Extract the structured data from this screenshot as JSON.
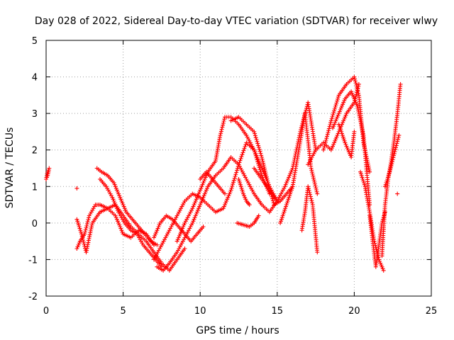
{
  "chart_data": {
    "type": "scatter",
    "title": "Day 028 of 2022, Sidereal Day-to-day VTEC variation (SDTVAR) for receiver wlwy",
    "xlabel": "GPS time / hours",
    "ylabel": "SDTVAR / TECUs",
    "xlim": [
      0,
      25
    ],
    "ylim": [
      -2,
      5
    ],
    "xticks": [
      0,
      5,
      10,
      15,
      20,
      25
    ],
    "yticks": [
      -2,
      -1,
      0,
      1,
      2,
      3,
      4,
      5
    ],
    "xtick_labels": [
      "0",
      "5",
      "10",
      "15",
      "20",
      "25"
    ],
    "ytick_labels": [
      "-2",
      "-1",
      "0",
      "1",
      "2",
      "3",
      "4",
      "5"
    ],
    "grid": true,
    "marker": "+",
    "color": "#ff0000",
    "series": [
      {
        "name": "s1",
        "x": [
          0.0,
          0.1,
          0.2,
          0.1,
          0.0
        ],
        "y": [
          1.2,
          1.4,
          1.5,
          1.3,
          1.2
        ]
      },
      {
        "name": "s2",
        "x": [
          2.0
        ],
        "y": [
          0.95
        ]
      },
      {
        "name": "s3",
        "x": [
          2.0,
          2.2,
          2.5,
          2.8,
          3.2,
          3.5,
          4.0,
          4.5,
          5.0,
          5.5,
          6.0,
          6.5,
          7.0
        ],
        "y": [
          -0.7,
          -0.5,
          -0.3,
          0.2,
          0.5,
          0.5,
          0.4,
          0.2,
          -0.3,
          -0.4,
          -0.2,
          -0.3,
          -0.6
        ]
      },
      {
        "name": "s4",
        "x": [
          2.0,
          2.3,
          2.6,
          3.0,
          3.5,
          4.0,
          4.5,
          5.0,
          5.5,
          6.0,
          6.5,
          7.0,
          7.5,
          8.0,
          8.5,
          9.0
        ],
        "y": [
          0.1,
          -0.3,
          -0.8,
          0.0,
          0.3,
          0.4,
          0.5,
          0.2,
          -0.1,
          -0.3,
          -0.5,
          -0.8,
          -1.1,
          -1.3,
          -1.0,
          -0.7
        ]
      },
      {
        "name": "s5",
        "x": [
          3.3,
          3.6,
          4.0,
          4.4,
          4.8,
          5.2,
          5.6,
          6.0,
          6.4,
          6.8,
          7.2
        ],
        "y": [
          1.5,
          1.4,
          1.3,
          1.1,
          0.7,
          0.3,
          0.1,
          -0.1,
          -0.3,
          -0.5,
          -0.6
        ]
      },
      {
        "name": "s6",
        "x": [
          3.5,
          3.9,
          4.3,
          4.7,
          5.1,
          5.5,
          5.9,
          6.3,
          6.7,
          7.1,
          7.5
        ],
        "y": [
          1.2,
          1.0,
          0.7,
          0.3,
          0.0,
          -0.2,
          -0.3,
          -0.6,
          -0.8,
          -1.0,
          -1.2
        ]
      },
      {
        "name": "s7",
        "x": [
          7.2,
          7.6,
          8.0,
          8.5,
          9.0,
          9.5,
          10.0,
          10.5,
          11.0,
          11.5,
          12.0,
          12.5,
          13.0,
          13.5,
          14.0,
          14.5,
          15.0
        ],
        "y": [
          -1.2,
          -1.3,
          -1.1,
          -0.8,
          -0.4,
          0.0,
          0.5,
          1.0,
          1.3,
          1.5,
          1.8,
          1.6,
          1.2,
          0.8,
          0.5,
          0.3,
          0.6
        ]
      },
      {
        "name": "s8",
        "x": [
          8.5,
          9.0,
          9.5,
          10.0,
          10.5,
          11.0,
          11.3,
          11.6,
          12.0,
          12.5,
          13.0,
          13.5,
          14.0,
          14.5,
          15.0
        ],
        "y": [
          -0.5,
          0.0,
          0.4,
          0.9,
          1.4,
          1.7,
          2.4,
          2.9,
          2.9,
          2.7,
          2.4,
          2.0,
          1.5,
          1.0,
          0.6
        ]
      },
      {
        "name": "s9",
        "x": [
          7.0,
          7.5,
          8.0,
          8.5,
          9.0,
          9.5,
          10.0,
          10.5,
          11.0,
          11.5,
          12.0,
          12.5,
          13.0,
          13.5,
          14.0,
          14.5
        ],
        "y": [
          -1.0,
          -0.6,
          -0.2,
          0.2,
          0.6,
          0.8,
          0.7,
          0.5,
          0.3,
          0.4,
          0.9,
          1.6,
          2.2,
          2.0,
          1.3,
          0.8
        ]
      },
      {
        "name": "s10",
        "x": [
          7.0,
          7.4,
          7.8,
          8.2,
          8.6,
          9.0,
          9.4,
          9.8,
          10.2
        ],
        "y": [
          -0.4,
          0.0,
          0.2,
          0.1,
          -0.1,
          -0.3,
          -0.5,
          -0.3,
          -0.1
        ]
      },
      {
        "name": "s11",
        "x": [
          10.0,
          10.4,
          10.8,
          11.2,
          11.6
        ],
        "y": [
          1.2,
          1.4,
          1.2,
          1.0,
          0.8
        ]
      },
      {
        "name": "s12",
        "x": [
          12.0,
          12.5,
          13.0,
          13.5,
          14.0,
          14.4,
          14.8,
          15.2,
          15.6,
          16.0
        ],
        "y": [
          2.8,
          2.9,
          2.7,
          2.5,
          1.8,
          1.1,
          0.5,
          0.6,
          0.8,
          1.0
        ]
      },
      {
        "name": "s13",
        "x": [
          12.5,
          12.8,
          13.0,
          13.2
        ],
        "y": [
          1.2,
          0.8,
          0.6,
          0.5
        ]
      },
      {
        "name": "s14",
        "x": [
          12.4,
          12.8,
          13.2,
          13.5,
          13.8
        ],
        "y": [
          0.0,
          -0.05,
          -0.1,
          0.0,
          0.2
        ]
      },
      {
        "name": "s15",
        "x": [
          13.5,
          14.0,
          14.5,
          15.0,
          15.5,
          16.0,
          16.5,
          17.0,
          17.5
        ],
        "y": [
          1.5,
          1.2,
          0.9,
          0.6,
          1.0,
          1.5,
          2.5,
          3.3,
          2.0
        ]
      },
      {
        "name": "s16",
        "x": [
          15.2,
          15.6,
          16.0,
          16.4,
          16.8,
          17.2,
          17.6
        ],
        "y": [
          0.0,
          0.5,
          1.0,
          2.0,
          3.0,
          1.5,
          0.8
        ]
      },
      {
        "name": "s17",
        "x": [
          16.6,
          16.8,
          17.0,
          17.3,
          17.6
        ],
        "y": [
          -0.2,
          0.3,
          1.0,
          0.5,
          -0.8
        ]
      },
      {
        "name": "s18",
        "x": [
          17.0,
          17.5,
          18.0,
          18.5,
          19.0,
          19.5,
          20.0,
          20.3
        ],
        "y": [
          1.6,
          2.0,
          2.2,
          2.0,
          2.5,
          3.0,
          3.3,
          3.8
        ]
      },
      {
        "name": "s19",
        "x": [
          18.0,
          18.5,
          19.0,
          19.5,
          20.0,
          20.3,
          20.6,
          21.0
        ],
        "y": [
          2.0,
          2.8,
          3.5,
          3.8,
          4.0,
          3.5,
          2.2,
          1.4
        ]
      },
      {
        "name": "s20",
        "x": [
          18.6,
          19.0,
          19.4,
          19.8,
          20.2,
          20.6,
          21.0
        ],
        "y": [
          2.6,
          3.0,
          3.4,
          3.6,
          3.2,
          2.4,
          0.5
        ]
      },
      {
        "name": "s21",
        "x": [
          19.0,
          19.4,
          19.8,
          20.0
        ],
        "y": [
          2.7,
          2.2,
          1.8,
          2.5
        ]
      },
      {
        "name": "s22",
        "x": [
          20.4,
          20.7,
          21.0,
          21.3,
          21.6,
          21.9
        ],
        "y": [
          1.4,
          1.0,
          0.3,
          -0.5,
          -1.0,
          -1.3
        ]
      },
      {
        "name": "s23",
        "x": [
          21.0,
          21.2,
          21.4,
          21.6,
          21.8,
          22.0
        ],
        "y": [
          0.2,
          -0.5,
          -1.2,
          -0.6,
          0.0,
          0.3
        ]
      },
      {
        "name": "s24",
        "x": [
          21.8,
          22.0,
          22.2,
          22.4,
          22.6,
          22.8,
          23.0
        ],
        "y": [
          -0.9,
          0.5,
          1.2,
          1.7,
          2.3,
          3.0,
          3.8
        ]
      },
      {
        "name": "s25",
        "x": [
          22.0,
          22.3,
          22.6,
          22.9
        ],
        "y": [
          1.0,
          1.4,
          1.9,
          2.4
        ]
      },
      {
        "name": "s26",
        "x": [
          22.8
        ],
        "y": [
          0.8
        ]
      }
    ]
  }
}
